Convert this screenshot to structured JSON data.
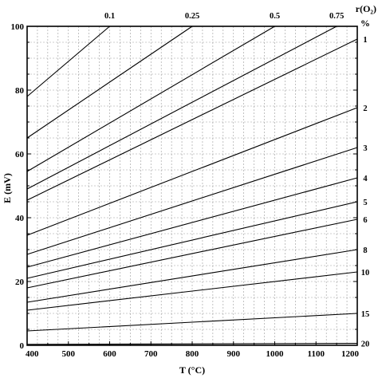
{
  "chart_data": {
    "type": "line",
    "xlabel": "T (°C)",
    "ylabel": "E (mV)",
    "top_right_label": "r(O₂)",
    "right_unit_label": "%",
    "xlim": [
      400,
      1200
    ],
    "ylim": [
      0,
      100
    ],
    "x_ticks": [
      "400",
      "500",
      "600",
      "700",
      "800",
      "900",
      "1000",
      "1100",
      "1200"
    ],
    "y_ticks": [
      "0",
      "20",
      "40",
      "60",
      "80",
      "100"
    ],
    "grid": true,
    "series": [
      {
        "name": "0.1",
        "edge": "top",
        "x": [
          400,
          600
        ],
        "y": [
          78,
          100
        ]
      },
      {
        "name": "0.25",
        "edge": "top",
        "x": [
          400,
          800
        ],
        "y": [
          65,
          100
        ]
      },
      {
        "name": "0.5",
        "edge": "top",
        "x": [
          400,
          1000
        ],
        "y": [
          54.5,
          100
        ]
      },
      {
        "name": "0.75",
        "edge": "top",
        "x": [
          400,
          1150
        ],
        "y": [
          49,
          100
        ]
      },
      {
        "name": "1",
        "edge": "right",
        "x": [
          400,
          1200
        ],
        "y": [
          45.5,
          96
        ]
      },
      {
        "name": "2",
        "edge": "right",
        "x": [
          400,
          1200
        ],
        "y": [
          34.5,
          74.5
        ]
      },
      {
        "name": "3",
        "edge": "right",
        "x": [
          400,
          1200
        ],
        "y": [
          28.5,
          62
        ]
      },
      {
        "name": "4",
        "edge": "right",
        "x": [
          400,
          1200
        ],
        "y": [
          24.5,
          52.5
        ]
      },
      {
        "name": "5",
        "edge": "right",
        "x": [
          400,
          1200
        ],
        "y": [
          21,
          45
        ]
      },
      {
        "name": "6",
        "edge": "right",
        "x": [
          400,
          1200
        ],
        "y": [
          18,
          39.5
        ]
      },
      {
        "name": "8",
        "edge": "right",
        "x": [
          400,
          1200
        ],
        "y": [
          13.5,
          30
        ]
      },
      {
        "name": "10",
        "edge": "right",
        "x": [
          400,
          1200
        ],
        "y": [
          11,
          23
        ]
      },
      {
        "name": "15",
        "edge": "right",
        "x": [
          400,
          1200
        ],
        "y": [
          4.5,
          10
        ]
      },
      {
        "name": "20",
        "edge": "right",
        "x": [
          400,
          1200
        ],
        "y": [
          0.3,
          0.6
        ]
      }
    ]
  }
}
